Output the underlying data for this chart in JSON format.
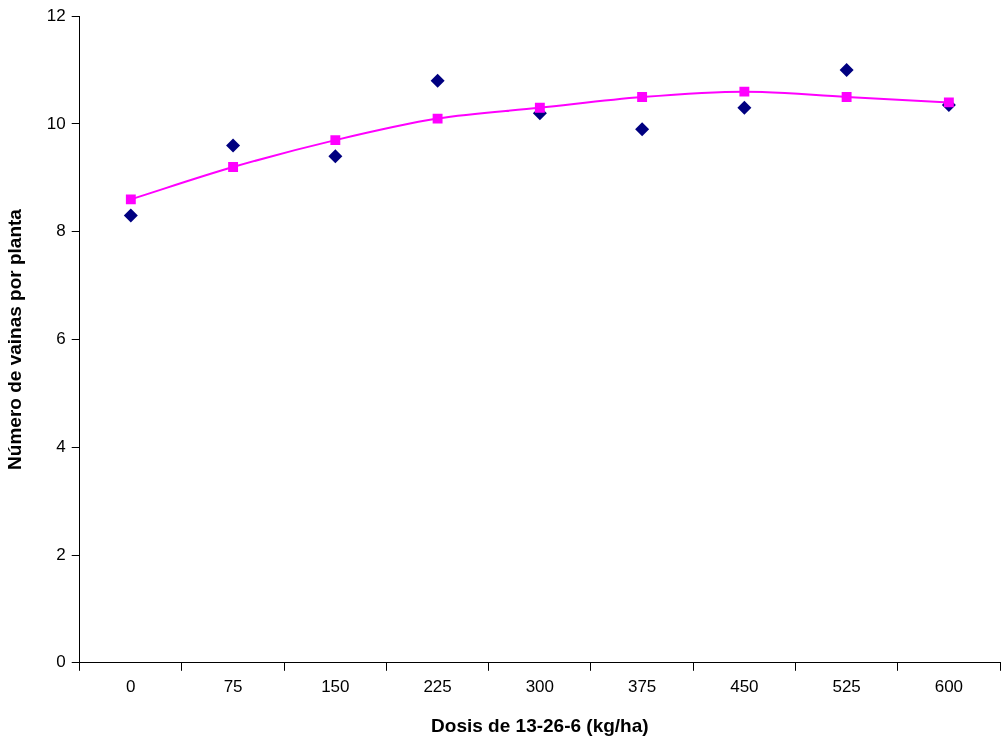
{
  "chart_data": {
    "type": "line",
    "xlabel": "Dosis de 13-26-6 (kg/ha)",
    "ylabel": "Número de vainas por planta",
    "categories": [
      "0",
      "75",
      "150",
      "225",
      "300",
      "375",
      "450",
      "525",
      "600"
    ],
    "ylim": [
      0,
      12
    ],
    "yticks": [
      0,
      2,
      4,
      6,
      8,
      10,
      12
    ],
    "grid": false,
    "legend": false,
    "series": [
      {
        "type": "scatter",
        "marker": "diamond",
        "color": "#000080",
        "values": [
          8.3,
          9.6,
          9.4,
          10.8,
          10.2,
          9.9,
          10.3,
          11.0,
          10.35
        ]
      },
      {
        "marker": "square",
        "line_style": "solid",
        "color": "#ff00ff",
        "values": [
          8.6,
          9.2,
          9.7,
          10.1,
          10.3,
          10.5,
          10.6,
          10.5,
          10.4
        ]
      }
    ]
  }
}
